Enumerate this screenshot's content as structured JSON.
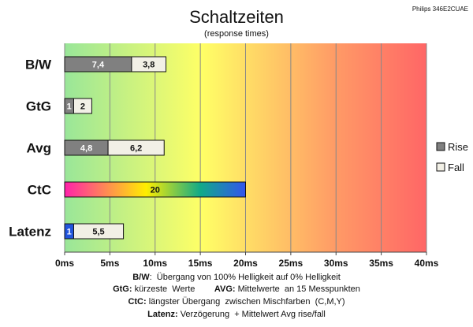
{
  "chart_data": {
    "type": "bar",
    "orientation": "horizontal",
    "stacked": true,
    "title": "Schaltzeiten",
    "subtitle": "(response times)",
    "model": "Philips 346E2CUAE",
    "categories": [
      "B/W",
      "GtG",
      "Avg",
      "CtC",
      "Latenz"
    ],
    "series": [
      {
        "name": "Rise",
        "values": [
          7.4,
          1,
          4.8,
          20,
          1
        ],
        "labels": [
          "7,4",
          "1",
          "4,8",
          "20",
          "1"
        ]
      },
      {
        "name": "Fall",
        "values": [
          3.8,
          2,
          6.2,
          null,
          5.5
        ],
        "labels": [
          "3,8",
          "2",
          "6,2",
          "",
          "5,5"
        ]
      }
    ],
    "xlim": [
      0,
      40
    ],
    "xticks": [
      "0ms",
      "5ms",
      "10ms",
      "15ms",
      "20ms",
      "25ms",
      "30ms",
      "35ms",
      "40ms"
    ],
    "grid": true,
    "legend_position": "right",
    "colors": {
      "rise": "#808080",
      "fall": "#f2f0e6",
      "latenz_rise": "#2255dd",
      "background_gradient": [
        "#99e699",
        "#ffff66",
        "#ff9a66",
        "#ff6666"
      ],
      "ctc_gradient": [
        "#ff22aa",
        "#ffee00",
        "#11aa88",
        "#3355ee"
      ]
    }
  },
  "notes": [
    {
      "parts": [
        {
          "b": "B/W"
        },
        {
          "t": ":  Übergang von 100% Helligkeit auf 0% Helligkeit"
        }
      ]
    },
    {
      "parts": [
        {
          "b": "GtG:"
        },
        {
          "t": " kürzeste  Werte        "
        },
        {
          "b": "AVG:"
        },
        {
          "t": " Mittelwerte  an 15 Messpunkten"
        }
      ]
    },
    {
      "parts": [
        {
          "b": "CtC:"
        },
        {
          "t": " längster Übergang  zwischen Mischfarben  (C,M,Y)"
        }
      ]
    },
    {
      "parts": [
        {
          "b": "Latenz:"
        },
        {
          "t": " Verzögerung  + Mittelwert Avg rise/fall"
        }
      ]
    }
  ]
}
